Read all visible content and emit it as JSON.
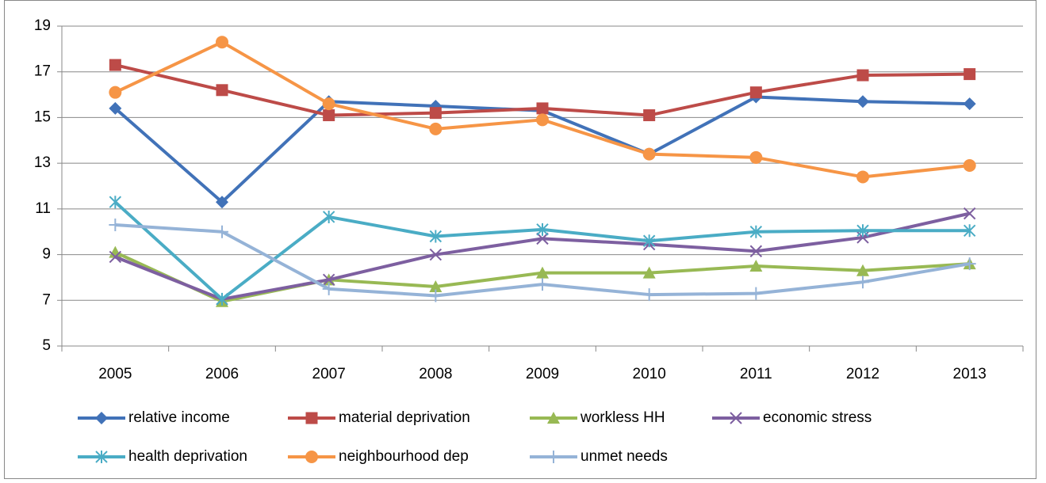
{
  "chart_data": {
    "type": "line",
    "categories": [
      "2005",
      "2006",
      "2007",
      "2008",
      "2009",
      "2010",
      "2011",
      "2012",
      "2013"
    ],
    "ylim": [
      5,
      19
    ],
    "yticks": [
      5,
      7,
      9,
      11,
      13,
      15,
      17,
      19
    ],
    "grid": true,
    "series": [
      {
        "name": "relative income",
        "color": "#4172b8",
        "marker": "diamond",
        "values": [
          15.4,
          11.3,
          15.7,
          15.5,
          15.3,
          13.4,
          15.9,
          15.7,
          15.6
        ]
      },
      {
        "name": "material deprivation",
        "color": "#bd4b48",
        "marker": "square",
        "values": [
          17.3,
          16.2,
          15.1,
          15.2,
          15.4,
          15.1,
          16.1,
          16.85,
          16.9
        ]
      },
      {
        "name": "workless HH",
        "color": "#98b954",
        "marker": "triangle",
        "values": [
          9.1,
          6.95,
          7.9,
          7.6,
          8.2,
          8.2,
          8.5,
          8.3,
          8.6
        ]
      },
      {
        "name": "economic stress",
        "color": "#7d5fa0",
        "marker": "x",
        "values": [
          8.9,
          7.05,
          7.9,
          9.0,
          9.7,
          9.45,
          9.15,
          9.75,
          10.8
        ]
      },
      {
        "name": "health deprivation",
        "color": "#4aacc5",
        "marker": "star",
        "values": [
          11.3,
          7.05,
          10.65,
          9.8,
          10.1,
          9.6,
          10.0,
          10.05,
          10.05
        ]
      },
      {
        "name": "neighbourhood dep",
        "color": "#f69546",
        "marker": "circle",
        "values": [
          16.1,
          18.3,
          15.6,
          14.5,
          14.9,
          13.4,
          13.25,
          12.4,
          12.9
        ]
      },
      {
        "name": "unmet needs",
        "color": "#95b3d7",
        "marker": "plus",
        "values": [
          10.3,
          10.0,
          7.5,
          7.2,
          7.7,
          7.25,
          7.3,
          7.8,
          8.6
        ]
      }
    ]
  }
}
